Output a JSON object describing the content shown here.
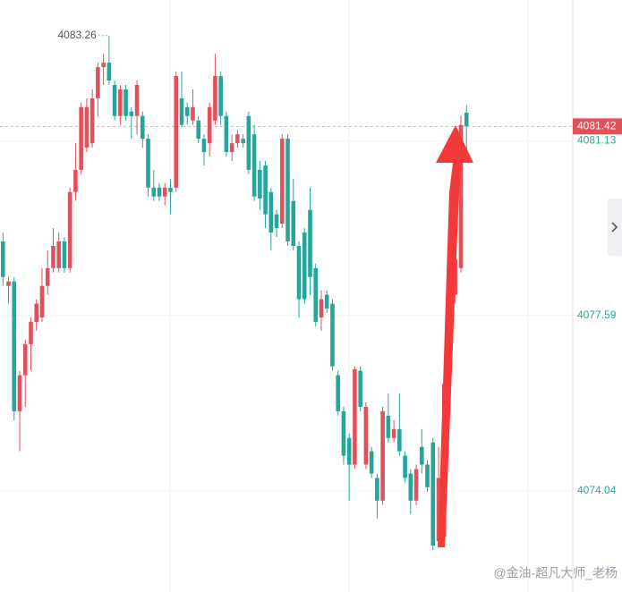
{
  "chart_data": {
    "type": "candlestick",
    "up_color": "#e0525b",
    "down_color": "#26a69a",
    "ylim": [
      4071.99,
      4083.98
    ],
    "yticks": [
      4074.04,
      4077.59,
      4081.13
    ],
    "grid": true,
    "high_annotation": 4083.26,
    "last_price": 4081.42,
    "watermark": "@金油-超凡大师_老杨",
    "candles": [
      [
        4079.09,
        4079.27,
        4078.19,
        4078.37
      ],
      [
        4078.19,
        4078.37,
        4077.83,
        4078.28
      ],
      [
        4078.28,
        4078.37,
        4075.47,
        4075.65
      ],
      [
        4075.65,
        4076.47,
        4074.84,
        4076.38
      ],
      [
        4076.38,
        4077.1,
        4075.74,
        4077.01
      ],
      [
        4077.01,
        4077.55,
        4076.47,
        4077.46
      ],
      [
        4077.46,
        4077.92,
        4077.28,
        4077.83
      ],
      [
        4077.55,
        4078.55,
        4077.46,
        4078.19
      ],
      [
        4078.19,
        4078.91,
        4078.01,
        4078.55
      ],
      [
        4078.55,
        4079.36,
        4078.46,
        4079.0
      ],
      [
        4078.55,
        4079.27,
        4078.46,
        4079.09
      ],
      [
        4079.09,
        4079.18,
        4078.46,
        4078.55
      ],
      [
        4078.55,
        4080.18,
        4078.46,
        4080.09
      ],
      [
        4080.09,
        4081.08,
        4079.91,
        4080.54
      ],
      [
        4080.54,
        4081.9,
        4080.45,
        4081.81
      ],
      [
        4080.99,
        4081.99,
        4080.9,
        4081.81
      ],
      [
        4081.08,
        4082.17,
        4080.99,
        4081.99
      ],
      [
        4081.99,
        4082.71,
        4081.63,
        4082.62
      ],
      [
        4082.62,
        4082.89,
        4082.26,
        4082.71
      ],
      [
        4082.71,
        4083.26,
        4082.26,
        4082.35
      ],
      [
        4082.26,
        4082.35,
        4081.54,
        4081.63
      ],
      [
        4081.63,
        4082.26,
        4081.45,
        4082.17
      ],
      [
        4082.17,
        4082.26,
        4081.54,
        4081.63
      ],
      [
        4081.72,
        4081.81,
        4081.17,
        4081.63
      ],
      [
        4081.63,
        4082.35,
        4081.26,
        4082.26
      ],
      [
        4081.63,
        4081.72,
        4080.99,
        4081.17
      ],
      [
        4081.17,
        4081.26,
        4080.0,
        4080.18
      ],
      [
        4080.18,
        4080.54,
        4079.91,
        4080.0
      ],
      [
        4080.18,
        4080.27,
        4079.91,
        4080.0
      ],
      [
        4080.0,
        4080.27,
        4079.82,
        4080.18
      ],
      [
        4080.18,
        4080.36,
        4079.64,
        4080.09
      ],
      [
        4080.18,
        4082.53,
        4080.09,
        4082.44
      ],
      [
        4081.99,
        4082.53,
        4081.4,
        4081.45
      ],
      [
        4081.81,
        4081.9,
        4081.45,
        4081.63
      ],
      [
        4081.54,
        4082.17,
        4081.45,
        4081.81
      ],
      [
        4081.54,
        4081.63,
        4081.08,
        4081.17
      ],
      [
        4081.17,
        4081.26,
        4080.63,
        4080.9
      ],
      [
        4081.08,
        4081.9,
        4080.81,
        4081.81
      ],
      [
        4081.54,
        4082.89,
        4081.45,
        4082.44
      ],
      [
        4082.44,
        4082.53,
        4081.45,
        4081.63
      ],
      [
        4081.63,
        4081.72,
        4080.81,
        4080.9
      ],
      [
        4080.9,
        4081.26,
        4080.72,
        4081.08
      ],
      [
        4081.08,
        4081.35,
        4080.99,
        4081.26
      ],
      [
        4081.17,
        4081.26,
        4080.99,
        4081.08
      ],
      [
        4081.63,
        4081.72,
        4080.45,
        4080.54
      ],
      [
        4081.26,
        4081.45,
        4079.91,
        4080.0
      ],
      [
        4080.54,
        4080.72,
        4079.73,
        4079.96
      ],
      [
        4080.63,
        4080.72,
        4079.36,
        4079.64
      ],
      [
        4080.09,
        4080.18,
        4078.91,
        4079.27
      ],
      [
        4079.64,
        4079.73,
        4079.18,
        4079.36
      ],
      [
        4079.45,
        4081.26,
        4079.36,
        4081.17
      ],
      [
        4081.17,
        4081.26,
        4079.0,
        4079.09
      ],
      [
        4079.91,
        4080.36,
        4078.91,
        4079.0
      ],
      [
        4079.0,
        4079.09,
        4077.55,
        4077.92
      ],
      [
        4079.27,
        4079.36,
        4077.83,
        4077.92
      ],
      [
        4079.73,
        4080.18,
        4078.01,
        4078.37
      ],
      [
        4078.55,
        4078.64,
        4077.37,
        4077.46
      ],
      [
        4077.55,
        4078.1,
        4077.28,
        4077.92
      ],
      [
        4078.01,
        4078.1,
        4077.64,
        4077.73
      ],
      [
        4077.83,
        4077.92,
        4076.47,
        4076.56
      ],
      [
        4076.38,
        4076.47,
        4075.56,
        4075.65
      ],
      [
        4075.65,
        4075.74,
        4074.57,
        4074.75
      ],
      [
        4075.11,
        4075.2,
        4073.84,
        4074.57
      ],
      [
        4074.57,
        4076.56,
        4074.48,
        4076.5
      ],
      [
        4076.47,
        4076.56,
        4075.65,
        4075.74
      ],
      [
        4074.57,
        4075.83,
        4074.48,
        4075.74
      ],
      [
        4074.84,
        4074.93,
        4074.3,
        4074.39
      ],
      [
        4074.3,
        4074.39,
        4073.48,
        4073.84
      ],
      [
        4073.84,
        4075.74,
        4073.75,
        4075.65
      ],
      [
        4075.56,
        4076.01,
        4075.02,
        4075.11
      ],
      [
        4075.11,
        4075.47,
        4075.02,
        4075.29
      ],
      [
        4075.29,
        4076.01,
        4074.75,
        4074.84
      ],
      [
        4074.75,
        4074.84,
        4074.21,
        4074.3
      ],
      [
        4074.39,
        4074.48,
        4073.57,
        4073.84
      ],
      [
        4073.84,
        4074.57,
        4073.75,
        4074.48
      ],
      [
        4074.93,
        4075.29,
        4074.39,
        4074.57
      ],
      [
        4074.57,
        4074.66,
        4074.02,
        4074.11
      ],
      [
        4075.02,
        4075.11,
        4072.84,
        4072.93
      ],
      [
        4073.02,
        4074.93,
        4072.93,
        4074.3
      ],
      [
        4073.11,
        4076.29,
        4073.02,
        4076.2
      ],
      [
        4076.38,
        4077.19,
        4076.2,
        4077.1
      ],
      [
        4078.01,
        4078.91,
        4077.83,
        4078.73
      ],
      [
        4078.55,
        4081.63,
        4078.46,
        4081.45
      ],
      [
        4081.7,
        4081.85,
        4080.95,
        4081.42
      ]
    ]
  }
}
